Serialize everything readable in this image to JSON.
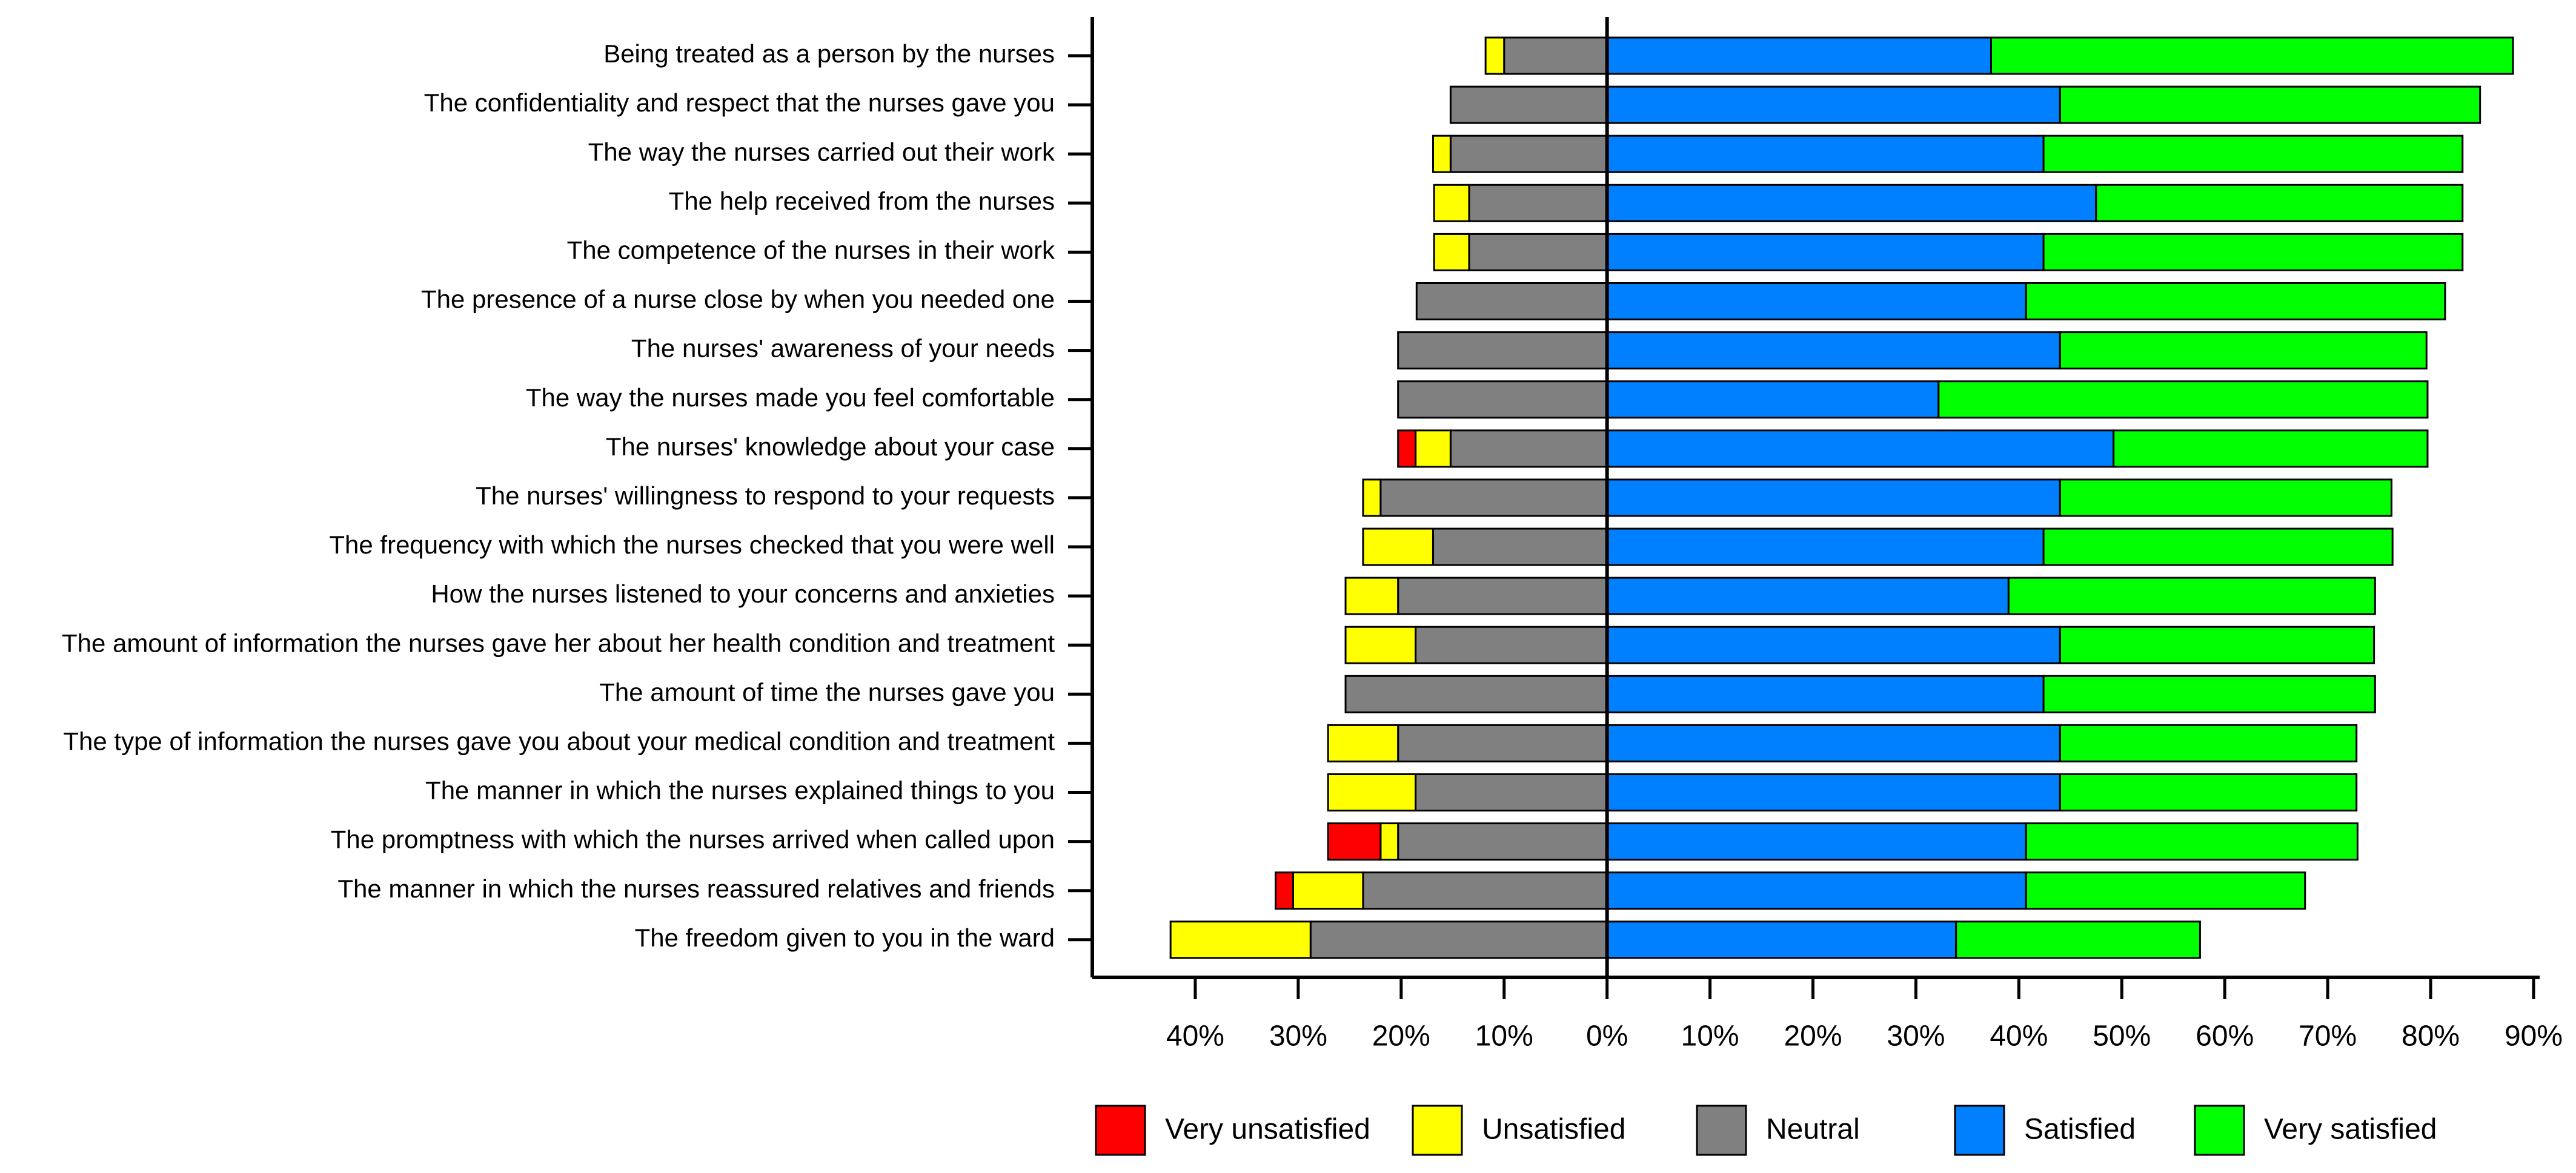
{
  "chart_data": {
    "type": "diverging-bar",
    "categories": [
      "Being treated as a person by the nurses",
      "The confidentiality and respect that the nurses gave you",
      "The way the nurses carried out their work",
      "The help received from the nurses",
      "The competence of the nurses in their work",
      "The presence of a nurse close by when you needed one",
      "The nurses' awareness of your needs",
      "The way the nurses made you feel comfortable",
      "The nurses' knowledge about your case",
      "The nurses' willingness to respond to your requests",
      "The frequency with which the nurses checked that you were well",
      "How the nurses listened to your concerns and anxieties",
      "The amount of information the nurses gave her about her health condition and treatment",
      "The amount of time the nurses gave you",
      "The type of information the nurses gave you about your medical condition and treatment",
      "The manner in which the nurses explained things to you",
      "The promptness with which the nurses arrived when called upon",
      "The manner in which the nurses reassured relatives and friends",
      "The freedom given to you in the ward"
    ],
    "series": [
      {
        "name": "Very unsatisfied",
        "color": "#ff0000",
        "values": [
          0,
          0,
          0,
          0,
          0,
          0,
          0,
          0,
          -1.7,
          0,
          0,
          0,
          0,
          0,
          0,
          0,
          -5.1,
          -1.7,
          0
        ]
      },
      {
        "name": "Unsatisfied",
        "color": "#ffff00",
        "values": [
          -1.8,
          0,
          -1.7,
          -3.4,
          -3.4,
          0,
          0,
          0,
          -3.4,
          -1.7,
          -6.8,
          -5.1,
          -6.8,
          0,
          -6.8,
          -8.5,
          -1.7,
          -6.8,
          -13.6
        ]
      },
      {
        "name": "Neutral",
        "color": "#808080",
        "values": [
          -10.0,
          -15.2,
          -15.2,
          -13.4,
          -13.4,
          -18.5,
          -20.3,
          -20.3,
          -15.2,
          -22.0,
          -16.9,
          -20.3,
          -18.6,
          -25.4,
          -20.3,
          -18.6,
          -20.3,
          -23.7,
          -28.8
        ]
      },
      {
        "name": "Satisfied",
        "color": "#0080ff",
        "values": [
          37.3,
          44.0,
          42.4,
          47.5,
          42.4,
          40.7,
          44.0,
          32.2,
          49.2,
          44.0,
          42.4,
          39.0,
          44.0,
          42.4,
          44.0,
          44.0,
          40.7,
          40.7,
          33.9
        ]
      },
      {
        "name": "Very satisfied",
        "color": "#00ff00",
        "values": [
          50.7,
          40.8,
          40.7,
          35.6,
          40.7,
          40.7,
          35.6,
          47.5,
          30.5,
          32.2,
          33.9,
          35.6,
          30.5,
          32.2,
          28.8,
          28.8,
          32.2,
          27.1,
          23.7
        ]
      }
    ],
    "xlim": [
      -50,
      90
    ],
    "xticks": [
      {
        "value": -40,
        "label": "40%"
      },
      {
        "value": -30,
        "label": "30%"
      },
      {
        "value": -20,
        "label": "20%"
      },
      {
        "value": -10,
        "label": "10%"
      },
      {
        "value": 0,
        "label": "0%"
      },
      {
        "value": 10,
        "label": "10%"
      },
      {
        "value": 20,
        "label": "20%"
      },
      {
        "value": 30,
        "label": "30%"
      },
      {
        "value": 40,
        "label": "40%"
      },
      {
        "value": 50,
        "label": "50%"
      },
      {
        "value": 60,
        "label": "60%"
      },
      {
        "value": 70,
        "label": "70%"
      },
      {
        "value": 80,
        "label": "80%"
      },
      {
        "value": 90,
        "label": "90%"
      }
    ],
    "legend": "bottom"
  }
}
